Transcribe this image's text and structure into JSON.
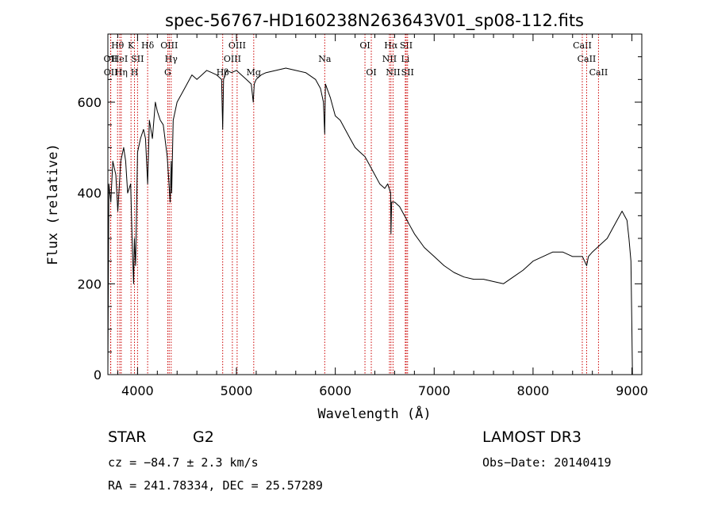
{
  "chart_data": {
    "type": "line",
    "title": "spec-56767-HD160238N263643V01_sp08-112.fits",
    "xlabel": "Wavelength (Å)",
    "ylabel": "Flux (relative)",
    "xlim": [
      3700,
      9100
    ],
    "ylim": [
      0,
      750
    ],
    "xticks": [
      4000,
      5000,
      6000,
      7000,
      8000,
      9000
    ],
    "yticks": [
      0,
      200,
      400,
      600
    ],
    "series": [
      {
        "name": "flux",
        "x": [
          3700,
          3710,
          3730,
          3750,
          3780,
          3800,
          3830,
          3860,
          3880,
          3900,
          3930,
          3945,
          3960,
          3968,
          3980,
          4000,
          4030,
          4060,
          4080,
          4102,
          4120,
          4150,
          4180,
          4200,
          4230,
          4260,
          4300,
          4330,
          4340,
          4345,
          4360,
          4400,
          4450,
          4500,
          4550,
          4600,
          4650,
          4700,
          4750,
          4800,
          4850,
          4861,
          4870,
          4900,
          4950,
          5000,
          5050,
          5100,
          5150,
          5170,
          5180,
          5200,
          5250,
          5300,
          5400,
          5500,
          5600,
          5700,
          5800,
          5850,
          5880,
          5893,
          5900,
          5950,
          6000,
          6050,
          6100,
          6150,
          6200,
          6250,
          6300,
          6350,
          6400,
          6450,
          6500,
          6530,
          6560,
          6563,
          6570,
          6600,
          6650,
          6700,
          6750,
          6800,
          6900,
          7000,
          7100,
          7200,
          7300,
          7400,
          7500,
          7600,
          7700,
          7800,
          7900,
          8000,
          8100,
          8200,
          8300,
          8400,
          8500,
          8542,
          8560,
          8600,
          8650,
          8700,
          8750,
          8800,
          8850,
          8900,
          8950,
          8970,
          8990,
          9000,
          9005
        ],
        "y": [
          10,
          420,
          380,
          470,
          440,
          360,
          470,
          500,
          470,
          400,
          420,
          300,
          200,
          300,
          240,
          490,
          520,
          540,
          520,
          420,
          560,
          520,
          600,
          580,
          560,
          550,
          480,
          380,
          470,
          400,
          560,
          600,
          620,
          640,
          660,
          650,
          660,
          670,
          665,
          660,
          650,
          540,
          650,
          670,
          665,
          670,
          660,
          650,
          640,
          600,
          640,
          650,
          660,
          665,
          670,
          675,
          670,
          665,
          650,
          630,
          600,
          530,
          640,
          610,
          570,
          560,
          540,
          520,
          500,
          490,
          480,
          460,
          440,
          420,
          410,
          420,
          400,
          310,
          380,
          380,
          370,
          350,
          330,
          310,
          280,
          260,
          240,
          225,
          215,
          210,
          210,
          205,
          200,
          215,
          230,
          250,
          260,
          270,
          270,
          260,
          260,
          240,
          260,
          270,
          280,
          290,
          300,
          320,
          340,
          360,
          340,
          300,
          250,
          100,
          0
        ]
      }
    ],
    "spectral_lines": [
      {
        "name": "OII",
        "x": 3727,
        "row": 2
      },
      {
        "name": "OII",
        "x": 3729,
        "row": 3
      },
      {
        "name": "Hθ",
        "x": 3798,
        "row": 1
      },
      {
        "name": "HeI",
        "x": 3820,
        "row": 2
      },
      {
        "name": "Hη",
        "x": 3835,
        "row": 3
      },
      {
        "name": "K",
        "x": 3934,
        "row": 1
      },
      {
        "name": "SII",
        "x": 4000,
        "row": 2
      },
      {
        "name": "H",
        "x": 3969,
        "row": 3
      },
      {
        "name": "Hδ",
        "x": 4102,
        "row": 1
      },
      {
        "name": "OIII",
        "x": 4320,
        "row": 1
      },
      {
        "name": "Hγ",
        "x": 4340,
        "row": 2
      },
      {
        "name": "G",
        "x": 4305,
        "row": 3
      },
      {
        "name": "OIII",
        "x": 5007,
        "row": 1
      },
      {
        "name": "OIII",
        "x": 4959,
        "row": 2
      },
      {
        "name": "Hβ",
        "x": 4861,
        "row": 3
      },
      {
        "name": "Mg",
        "x": 5175,
        "row": 3
      },
      {
        "name": "Na",
        "x": 5893,
        "row": 2
      },
      {
        "name": "OI",
        "x": 6300,
        "row": 1
      },
      {
        "name": "OI",
        "x": 6364,
        "row": 3
      },
      {
        "name": "Hα",
        "x": 6563,
        "row": 1
      },
      {
        "name": "NII",
        "x": 6548,
        "row": 2
      },
      {
        "name": "NII",
        "x": 6584,
        "row": 3
      },
      {
        "name": "SII",
        "x": 6717,
        "row": 1
      },
      {
        "name": "Li",
        "x": 6708,
        "row": 2
      },
      {
        "name": "SII",
        "x": 6731,
        "row": 3
      },
      {
        "name": "CaII",
        "x": 8498,
        "row": 1
      },
      {
        "name": "CaII",
        "x": 8542,
        "row": 2
      },
      {
        "name": "CaII",
        "x": 8662,
        "row": 3
      }
    ]
  },
  "info": {
    "object_class": "STAR",
    "subclass": "G2",
    "survey": "LAMOST DR3",
    "cz": "cz = −84.7 ± 2.3 km/s",
    "obs_date": "Obs−Date: 20140419",
    "coords": "RA = 241.78334, DEC =  25.57289"
  },
  "colors": {
    "line_markers": "#cc0000",
    "spectrum": "#000000"
  }
}
